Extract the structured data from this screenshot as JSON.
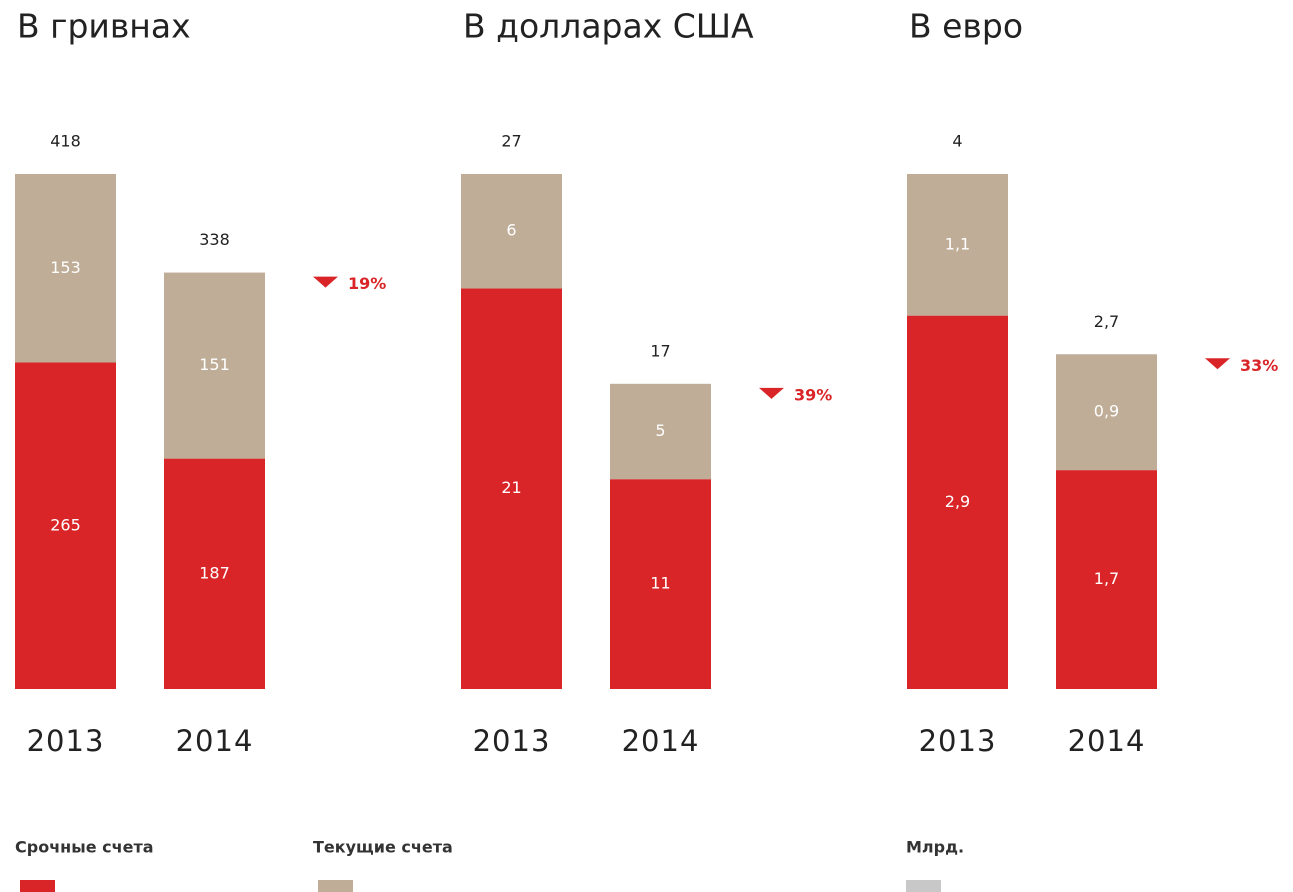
{
  "chart_data": [
    {
      "type": "bar",
      "stacked": true,
      "title": "В гривнах",
      "categories": [
        "2013",
        "2014"
      ],
      "series": [
        {
          "name": "Срочные счета",
          "color": "#d92528",
          "values": [
            265,
            187
          ]
        },
        {
          "name": "Текущие счета",
          "color": "#bfad98",
          "values": [
            153,
            151
          ]
        }
      ],
      "totals": [
        418,
        338
      ],
      "change": "19%"
    },
    {
      "type": "bar",
      "stacked": true,
      "title": "В долларах США",
      "categories": [
        "2013",
        "2014"
      ],
      "series": [
        {
          "color": "#d92528",
          "values": [
            21,
            11
          ]
        },
        {
          "color": "#bfad98",
          "values": [
            6,
            5
          ]
        }
      ],
      "totals": [
        27,
        17
      ],
      "change": "39%"
    },
    {
      "type": "bar",
      "stacked": true,
      "title": "В евро",
      "categories": [
        "2013",
        "2014"
      ],
      "series": [
        {
          "color": "#d92528",
          "values": [
            2.9,
            1.7
          ],
          "value_labels": [
            "2,9",
            "1,7"
          ]
        },
        {
          "color": "#bfad98",
          "values": [
            1.1,
            0.9
          ],
          "value_labels": [
            "1,1",
            "0,9"
          ]
        }
      ],
      "totals": [
        4,
        2.7
      ],
      "total_labels": [
        "4",
        "2,7"
      ],
      "change": "33%"
    }
  ],
  "unit_label": "Млрд.",
  "unit_color": "#c8c8c8"
}
